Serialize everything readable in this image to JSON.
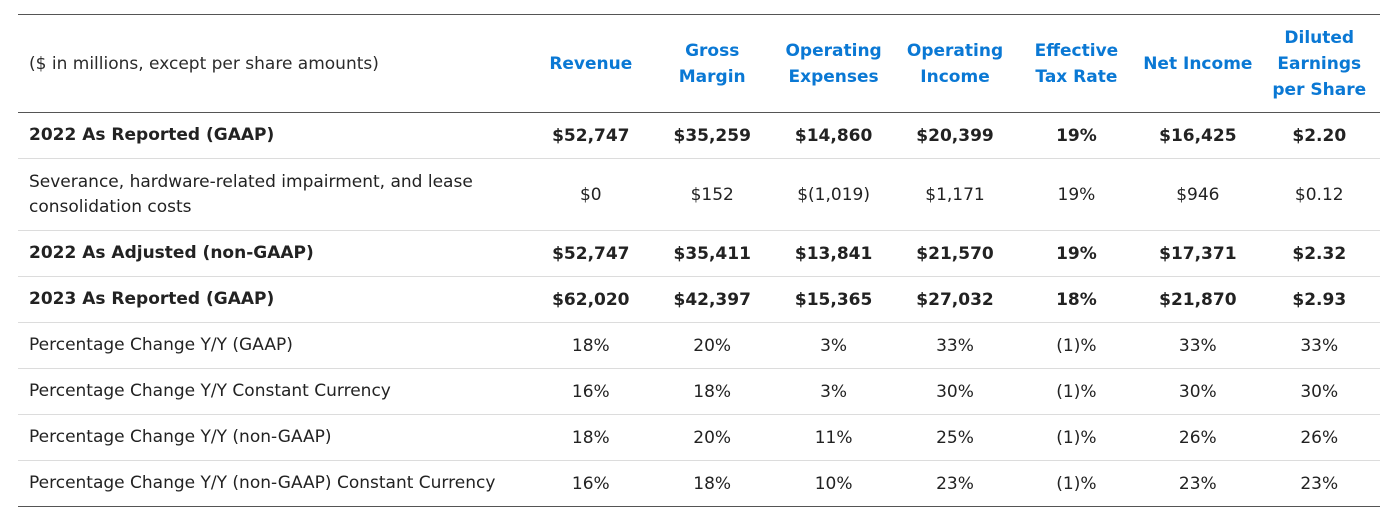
{
  "table": {
    "header_note": "($ in millions, except per share amounts)",
    "columns": [
      "Revenue",
      "Gross Margin",
      "Operating Expenses",
      "Operating Income",
      "Effective Tax Rate",
      "Net Income",
      "Diluted Earnings per Share"
    ],
    "rows": [
      {
        "label": "2022 As Reported (GAAP)",
        "bold": true,
        "values": [
          "$52,747",
          "$35,259",
          "$14,860",
          "$20,399",
          "19%",
          "$16,425",
          "$2.20"
        ]
      },
      {
        "label": "Severance, hardware-related impairment, and lease consolidation costs",
        "bold": false,
        "values": [
          "$0",
          "$152",
          "$(1,019)",
          "$1,171",
          "19%",
          "$946",
          "$0.12"
        ]
      },
      {
        "label": "2022 As Adjusted (non-GAAP)",
        "bold": true,
        "values": [
          "$52,747",
          "$35,411",
          "$13,841",
          "$21,570",
          "19%",
          "$17,371",
          "$2.32"
        ]
      },
      {
        "label": "2023 As Reported (GAAP)",
        "bold": true,
        "values": [
          "$62,020",
          "$42,397",
          "$15,365",
          "$27,032",
          "18%",
          "$21,870",
          "$2.93"
        ]
      },
      {
        "label": "Percentage Change Y/Y (GAAP)",
        "bold": false,
        "values": [
          "18%",
          "20%",
          "3%",
          "33%",
          "(1)%",
          "33%",
          "33%"
        ]
      },
      {
        "label": "Percentage Change Y/Y Constant Currency",
        "bold": false,
        "values": [
          "16%",
          "18%",
          "3%",
          "30%",
          "(1)%",
          "30%",
          "30%"
        ]
      },
      {
        "label": "Percentage Change Y/Y (non-GAAP)",
        "bold": false,
        "values": [
          "18%",
          "20%",
          "11%",
          "25%",
          "(1)%",
          "26%",
          "26%"
        ]
      },
      {
        "label": "Percentage Change Y/Y (non-GAAP) Constant Currency",
        "bold": false,
        "values": [
          "16%",
          "18%",
          "10%",
          "23%",
          "(1)%",
          "23%",
          "23%"
        ]
      }
    ]
  }
}
